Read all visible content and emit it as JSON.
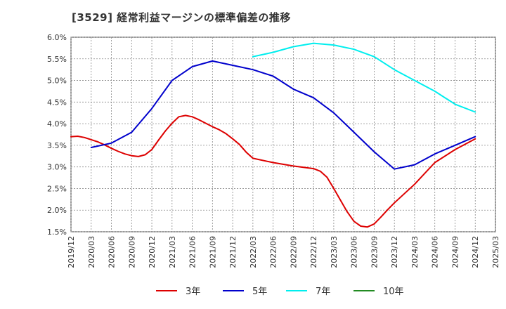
{
  "title": "[3529]  経常利益マージンの標準偏差の推移",
  "chart_data": {
    "type": "line",
    "title": "[3529]  経常利益マージンの標準偏差の推移",
    "xlabel": "",
    "ylabel": "",
    "x_ticks": [
      "2019/12",
      "2020/03",
      "2020/06",
      "2020/09",
      "2020/12",
      "2021/03",
      "2021/06",
      "2021/09",
      "2021/12",
      "2022/03",
      "2022/06",
      "2022/09",
      "2022/12",
      "2023/03",
      "2023/06",
      "2023/09",
      "2023/12",
      "2024/03",
      "2024/06",
      "2024/09",
      "2024/12",
      "2025/03"
    ],
    "y_ticks": [
      "1.5%",
      "2.0%",
      "2.5%",
      "3.0%",
      "3.5%",
      "4.0%",
      "4.5%",
      "5.0%",
      "5.5%",
      "6.0%"
    ],
    "ylim": [
      1.5,
      6.0
    ],
    "grid": true,
    "legend_position": "bottom",
    "series": [
      {
        "name": "3年",
        "color": "#dd0000",
        "x": [
          "2019/12",
          "2020/01",
          "2020/02",
          "2020/03",
          "2020/04",
          "2020/05",
          "2020/06",
          "2020/07",
          "2020/08",
          "2020/09",
          "2020/10",
          "2020/11",
          "2020/12",
          "2021/01",
          "2021/02",
          "2021/03",
          "2021/04",
          "2021/05",
          "2021/06",
          "2021/07",
          "2021/08",
          "2021/09",
          "2021/10",
          "2021/11",
          "2021/12",
          "2022/01",
          "2022/02",
          "2022/03",
          "2022/06",
          "2022/09",
          "2022/12",
          "2023/01",
          "2023/02",
          "2023/03",
          "2023/04",
          "2023/05",
          "2023/06",
          "2023/07",
          "2023/08",
          "2023/09",
          "2023/10",
          "2023/11",
          "2023/12",
          "2024/03",
          "2024/06",
          "2024/09",
          "2024/12"
        ],
        "values": [
          3.7,
          3.71,
          3.68,
          3.63,
          3.58,
          3.51,
          3.43,
          3.36,
          3.3,
          3.26,
          3.24,
          3.28,
          3.4,
          3.62,
          3.83,
          4.01,
          4.16,
          4.19,
          4.16,
          4.09,
          4.01,
          3.93,
          3.86,
          3.77,
          3.65,
          3.52,
          3.34,
          3.2,
          3.1,
          3.02,
          2.96,
          2.9,
          2.76,
          2.5,
          2.23,
          1.96,
          1.74,
          1.63,
          1.61,
          1.68,
          1.84,
          2.01,
          2.17,
          2.6,
          3.1,
          3.4,
          3.65
        ]
      },
      {
        "name": "5年",
        "color": "#0000cc",
        "x": [
          "2020/03",
          "2020/06",
          "2020/09",
          "2020/12",
          "2021/03",
          "2021/06",
          "2021/09",
          "2021/12",
          "2022/03",
          "2022/06",
          "2022/09",
          "2022/12",
          "2023/03",
          "2023/06",
          "2023/09",
          "2023/12",
          "2024/03",
          "2024/06",
          "2024/09",
          "2024/12"
        ],
        "values": [
          3.45,
          3.55,
          3.8,
          4.35,
          5.0,
          5.32,
          5.45,
          5.35,
          5.25,
          5.1,
          4.8,
          4.6,
          4.25,
          3.8,
          3.35,
          2.95,
          3.05,
          3.3,
          3.5,
          3.7
        ]
      },
      {
        "name": "7年",
        "color": "#00eeee",
        "x": [
          "2022/03",
          "2022/06",
          "2022/09",
          "2022/12",
          "2023/03",
          "2023/06",
          "2023/09",
          "2023/12",
          "2024/03",
          "2024/06",
          "2024/09",
          "2024/12"
        ],
        "values": [
          5.55,
          5.65,
          5.78,
          5.86,
          5.82,
          5.72,
          5.55,
          5.25,
          5.0,
          4.75,
          4.45,
          4.27
        ]
      },
      {
        "name": "10年",
        "color": "#228b22",
        "x": [],
        "values": []
      }
    ]
  }
}
